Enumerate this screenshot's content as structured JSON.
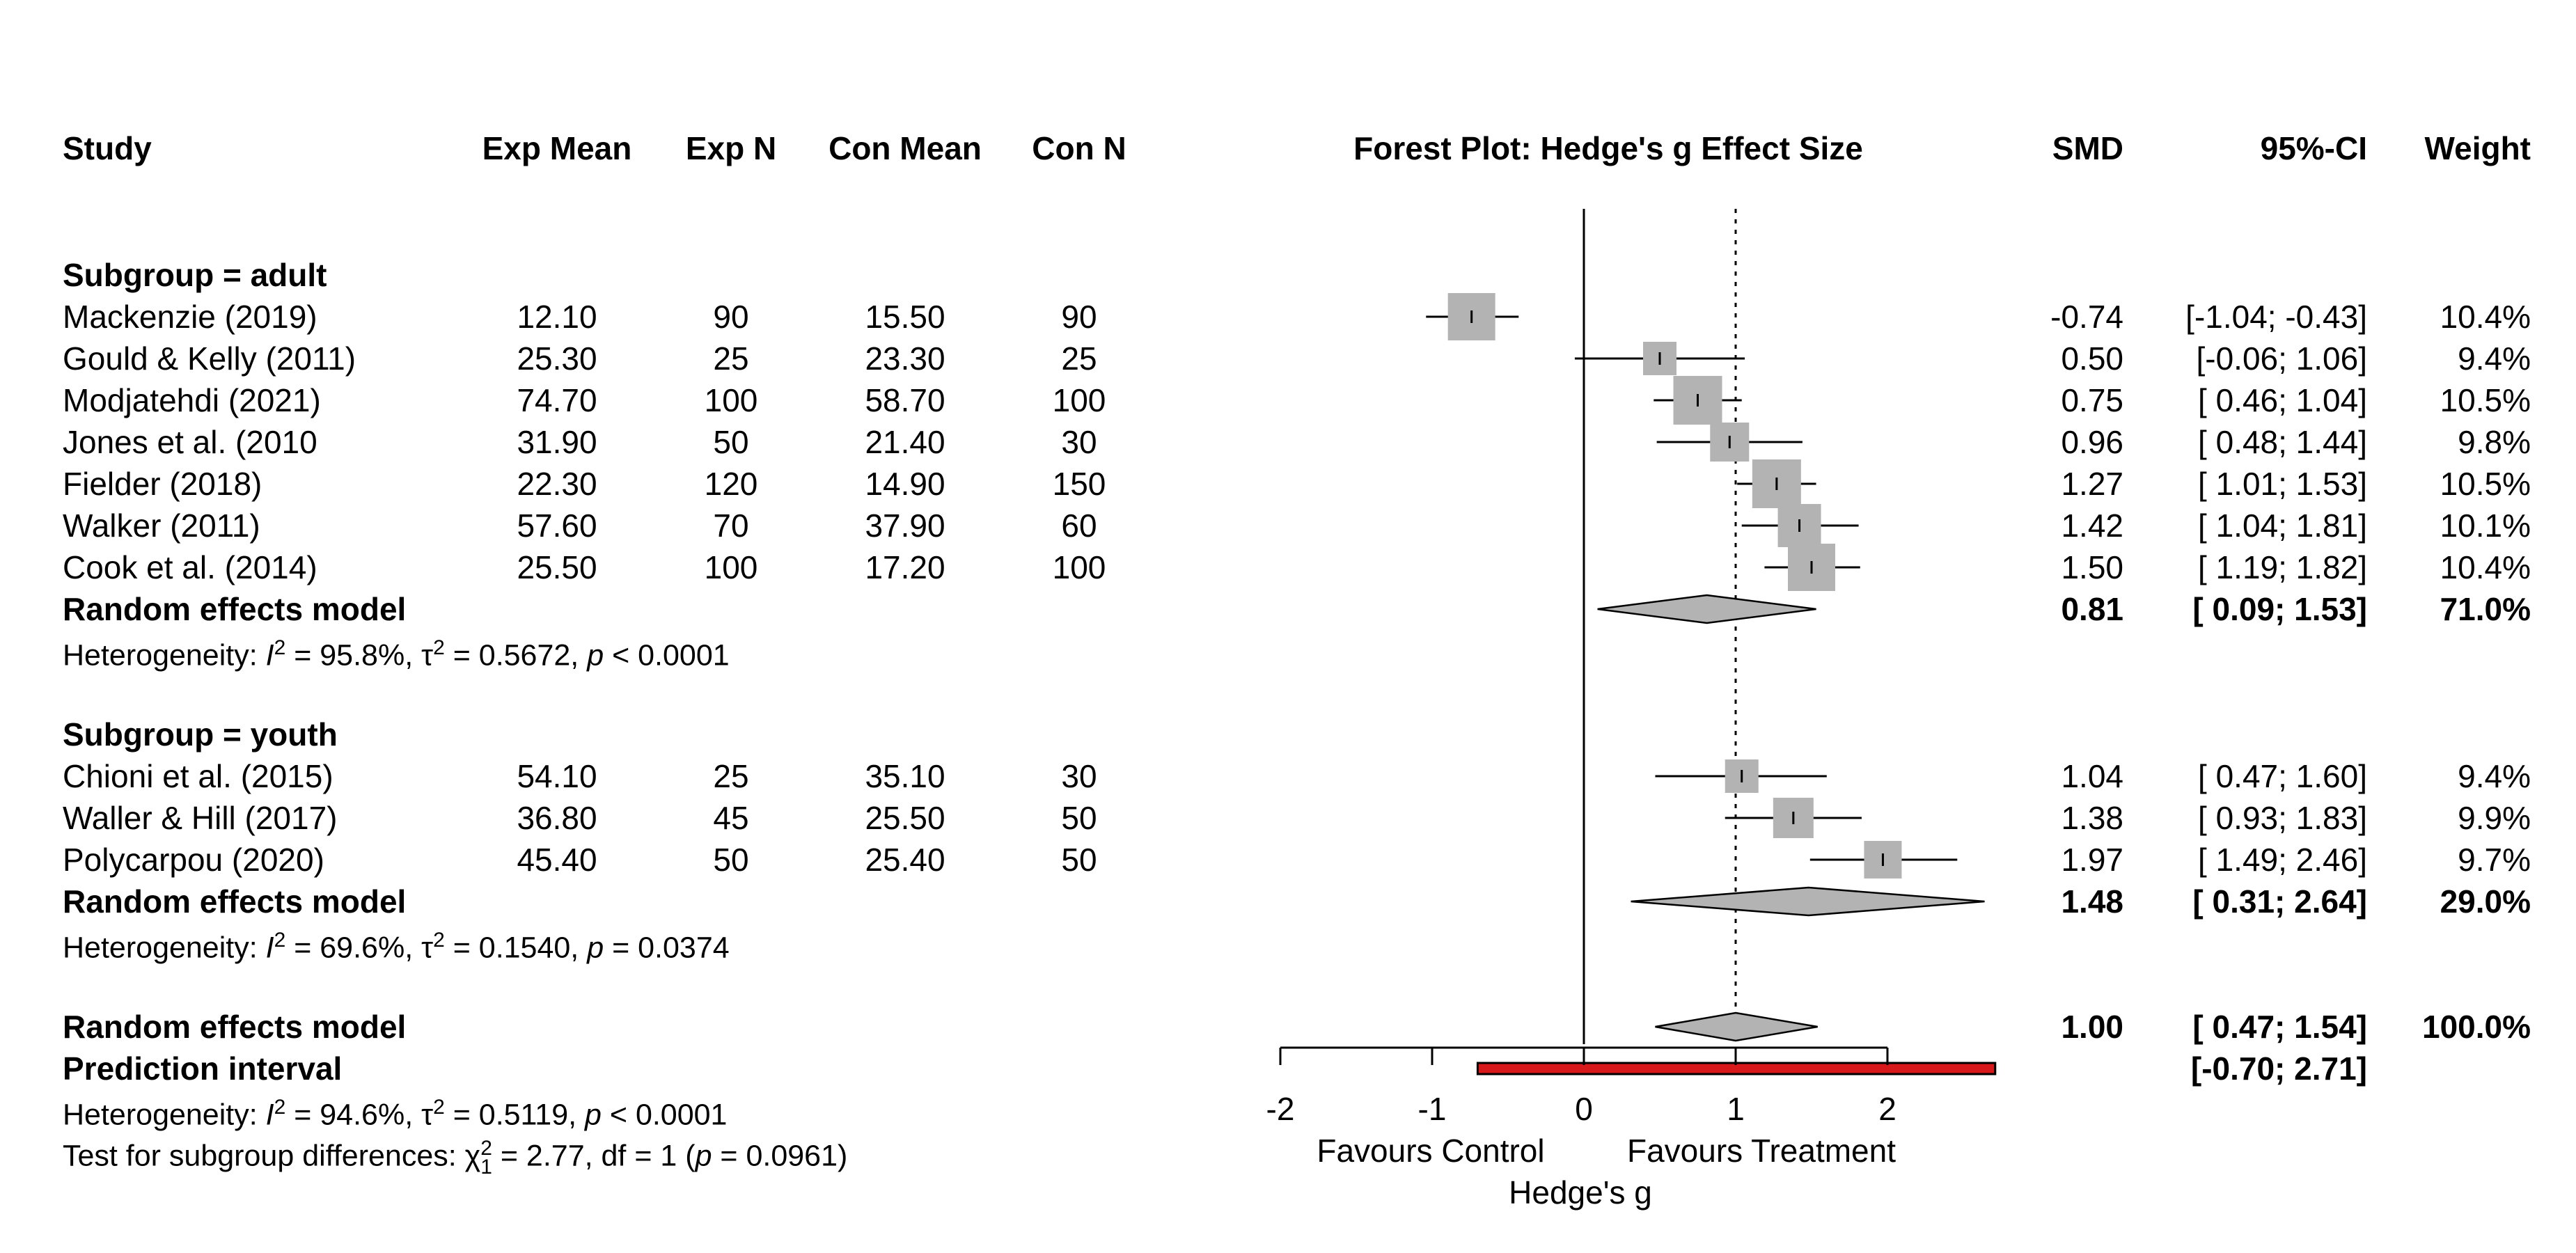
{
  "headers": {
    "study": "Study",
    "exp_mean": "Exp Mean",
    "exp_n": "Exp N",
    "con_mean": "Con Mean",
    "con_n": "Con N",
    "plot_title": "Forest Plot: Hedge's g Effect Size",
    "smd": "SMD",
    "ci": "95%-CI",
    "weight": "Weight"
  },
  "subgroups": [
    {
      "label": "Subgroup = adult",
      "studies": [
        {
          "study": "Mackenzie (2019)",
          "exp_mean": "12.10",
          "exp_n": "90",
          "con_mean": "15.50",
          "con_n": "90",
          "smd": "-0.74",
          "ci": "[-1.04; -0.43]",
          "weight": "10.4%"
        },
        {
          "study": "Gould & Kelly (2011)",
          "exp_mean": "25.30",
          "exp_n": "25",
          "con_mean": "23.30",
          "con_n": "25",
          "smd": "0.50",
          "ci": "[-0.06;  1.06]",
          "weight": "9.4%"
        },
        {
          "study": "Modjatehdi (2021)",
          "exp_mean": "74.70",
          "exp_n": "100",
          "con_mean": "58.70",
          "con_n": "100",
          "smd": "0.75",
          "ci": "[ 0.46;  1.04]",
          "weight": "10.5%"
        },
        {
          "study": "Jones et al. (2010",
          "exp_mean": "31.90",
          "exp_n": "50",
          "con_mean": "21.40",
          "con_n": "30",
          "smd": "0.96",
          "ci": "[ 0.48;  1.44]",
          "weight": "9.8%"
        },
        {
          "study": "Fielder (2018)",
          "exp_mean": "22.30",
          "exp_n": "120",
          "con_mean": "14.90",
          "con_n": "150",
          "smd": "1.27",
          "ci": "[ 1.01;  1.53]",
          "weight": "10.5%"
        },
        {
          "study": "Walker (2011)",
          "exp_mean": "57.60",
          "exp_n": "70",
          "con_mean": "37.90",
          "con_n": "60",
          "smd": "1.42",
          "ci": "[ 1.04;  1.81]",
          "weight": "10.1%"
        },
        {
          "study": "Cook et al. (2014)",
          "exp_mean": "25.50",
          "exp_n": "100",
          "con_mean": "17.20",
          "con_n": "100",
          "smd": "1.50",
          "ci": "[ 1.19;  1.82]",
          "weight": "10.4%"
        }
      ],
      "model": {
        "label": "Random effects model",
        "smd": "0.81",
        "ci": "[ 0.09;  1.53]",
        "weight": "71.0%"
      },
      "heterogeneity": {
        "prefix": "Heterogeneity: ",
        "i2_sym": "I",
        "i2_exp": "2",
        "i2_val": " = 95.8%, ",
        "tau_sym": "τ",
        "tau_exp": "2",
        "tau_val": " = 0.5672, ",
        "p_sym": "p",
        "p_val": " < 0.0001"
      }
    },
    {
      "label": "Subgroup = youth",
      "studies": [
        {
          "study": "Chioni et al. (2015)",
          "exp_mean": "54.10",
          "exp_n": "25",
          "con_mean": "35.10",
          "con_n": "30",
          "smd": "1.04",
          "ci": "[ 0.47;  1.60]",
          "weight": "9.4%"
        },
        {
          "study": "Waller & Hill (2017)",
          "exp_mean": "36.80",
          "exp_n": "45",
          "con_mean": "25.50",
          "con_n": "50",
          "smd": "1.38",
          "ci": "[ 0.93;  1.83]",
          "weight": "9.9%"
        },
        {
          "study": "Polycarpou (2020)",
          "exp_mean": "45.40",
          "exp_n": "50",
          "con_mean": "25.40",
          "con_n": "50",
          "smd": "1.97",
          "ci": "[ 1.49;  2.46]",
          "weight": "9.7%"
        }
      ],
      "model": {
        "label": "Random effects model",
        "smd": "1.48",
        "ci": "[ 0.31;  2.64]",
        "weight": "29.0%"
      },
      "heterogeneity": {
        "prefix": "Heterogeneity: ",
        "i2_sym": "I",
        "i2_exp": "2",
        "i2_val": " = 69.6%, ",
        "tau_sym": "τ",
        "tau_exp": "2",
        "tau_val": " = 0.1540, ",
        "p_sym": "p",
        "p_val": " = 0.0374"
      }
    }
  ],
  "overall": {
    "model": {
      "label": "Random effects model",
      "smd": "1.00",
      "ci": "[ 0.47;  1.54]",
      "weight": "100.0%"
    },
    "prediction": {
      "label": "Prediction interval",
      "ci": "[-0.70;  2.71]"
    },
    "heterogeneity": {
      "prefix": "Heterogeneity: ",
      "i2_sym": "I",
      "i2_exp": "2",
      "i2_val": " = 94.6%, ",
      "tau_sym": "τ",
      "tau_exp": "2",
      "tau_val": " = 0.5119, ",
      "p_sym": "p",
      "p_val": " < 0.0001"
    },
    "subgroup_test": {
      "prefix": "Test for subgroup differences: ",
      "chi_sym": "χ",
      "chi_sub": "1",
      "chi_sup": "2",
      "chi_val": " = 2.77, df = 1 (",
      "p_sym": "p",
      "p_val": " = 0.0961)"
    }
  },
  "axis": {
    "ticks": [
      "-2",
      "-1",
      "0",
      "1",
      "2"
    ],
    "left_label": "Favours Control",
    "right_label": "Favours Treatment",
    "xlabel": "Hedge's g"
  },
  "colors": {
    "square": "#b3b3b3",
    "diamond": "#b3b3b3",
    "prediction": "#d7191c"
  },
  "chart_data": {
    "type": "forest",
    "title": "Forest Plot: Hedge's g Effect Size",
    "xlabel": "Hedge's g",
    "xlim": [
      -2,
      2.71
    ],
    "tick_values": [
      -2,
      -1,
      0,
      1,
      2
    ],
    "null_line": 0,
    "overall_reference_line": 1.0,
    "studies": [
      {
        "name": "Mackenzie (2019)",
        "group": "adult",
        "smd": -0.74,
        "lower": -1.04,
        "upper": -0.43,
        "weight": 10.4
      },
      {
        "name": "Gould & Kelly (2011)",
        "group": "adult",
        "smd": 0.5,
        "lower": -0.06,
        "upper": 1.06,
        "weight": 9.4
      },
      {
        "name": "Modjatehdi (2021)",
        "group": "adult",
        "smd": 0.75,
        "lower": 0.46,
        "upper": 1.04,
        "weight": 10.5
      },
      {
        "name": "Jones et al. (2010",
        "group": "adult",
        "smd": 0.96,
        "lower": 0.48,
        "upper": 1.44,
        "weight": 9.8
      },
      {
        "name": "Fielder (2018)",
        "group": "adult",
        "smd": 1.27,
        "lower": 1.01,
        "upper": 1.53,
        "weight": 10.5
      },
      {
        "name": "Walker (2011)",
        "group": "adult",
        "smd": 1.42,
        "lower": 1.04,
        "upper": 1.81,
        "weight": 10.1
      },
      {
        "name": "Cook et al. (2014)",
        "group": "adult",
        "smd": 1.5,
        "lower": 1.19,
        "upper": 1.82,
        "weight": 10.4
      },
      {
        "name": "Chioni et al. (2015)",
        "group": "youth",
        "smd": 1.04,
        "lower": 0.47,
        "upper": 1.6,
        "weight": 9.4
      },
      {
        "name": "Waller & Hill (2017)",
        "group": "youth",
        "smd": 1.38,
        "lower": 0.93,
        "upper": 1.83,
        "weight": 9.9
      },
      {
        "name": "Polycarpou (2020)",
        "group": "youth",
        "smd": 1.97,
        "lower": 1.49,
        "upper": 2.46,
        "weight": 9.7
      }
    ],
    "pooled": [
      {
        "name": "Random effects model (adult)",
        "smd": 0.81,
        "lower": 0.09,
        "upper": 1.53,
        "weight": 71.0
      },
      {
        "name": "Random effects model (youth)",
        "smd": 1.48,
        "lower": 0.31,
        "upper": 2.64,
        "weight": 29.0
      },
      {
        "name": "Random effects model",
        "smd": 1.0,
        "lower": 0.47,
        "upper": 1.54,
        "weight": 100.0
      }
    ],
    "prediction_interval": {
      "lower": -0.7,
      "upper": 2.71
    }
  }
}
